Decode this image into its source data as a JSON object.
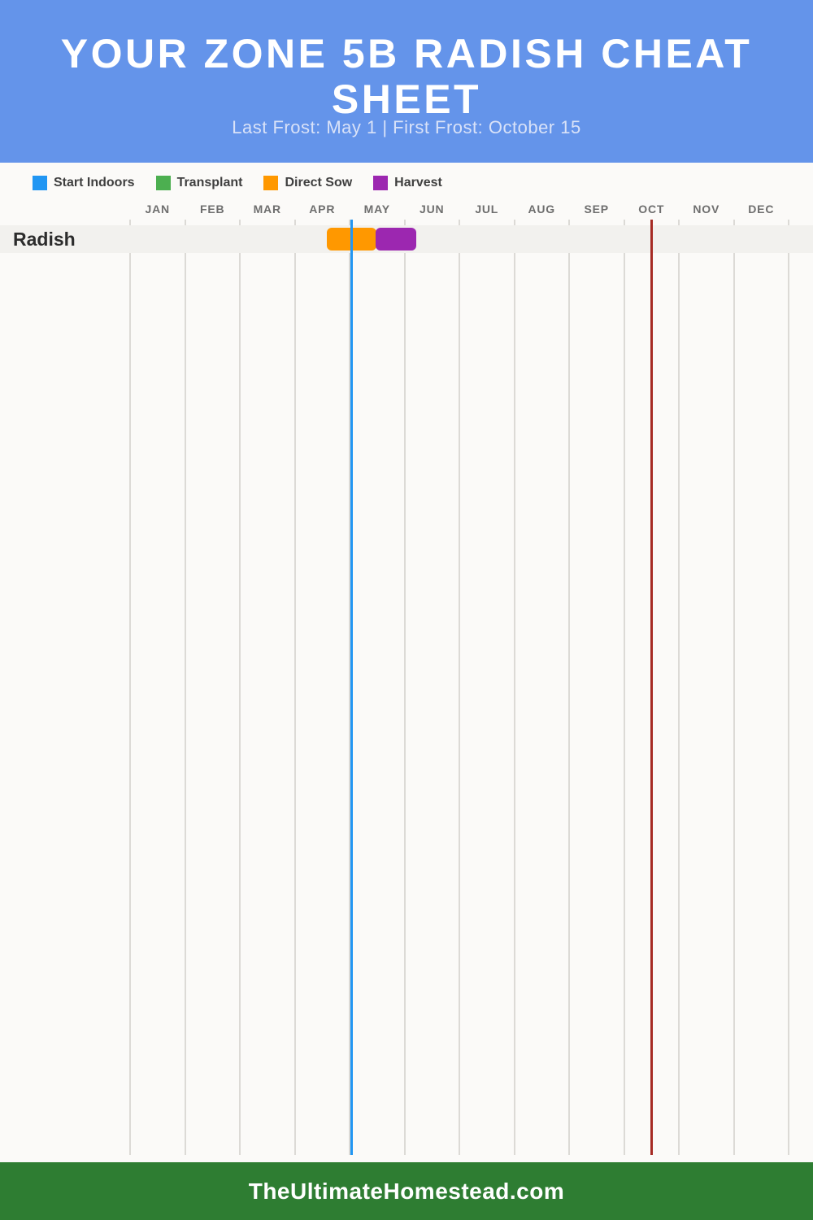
{
  "header": {
    "title_line1": "YOUR ZONE 5B RADISH CHEAT",
    "title_line2": "SHEET",
    "subtitle": "Last Frost: May 1 | First Frost: October 15",
    "bg_color": "#6494ea",
    "subtitle_color": "#d9e2f8"
  },
  "legend": {
    "items": [
      {
        "label": "Start Indoors",
        "color": "#2196f3"
      },
      {
        "label": "Transplant",
        "color": "#4caf50"
      },
      {
        "label": "Direct Sow",
        "color": "#ff9800"
      },
      {
        "label": "Harvest",
        "color": "#9c27b0"
      }
    ]
  },
  "chart_data": {
    "type": "gantt-timeline",
    "title": "Zone 5B radish planting calendar",
    "months": [
      "JAN",
      "FEB",
      "MAR",
      "APR",
      "MAY",
      "JUN",
      "JUL",
      "AUG",
      "SEP",
      "OCT",
      "NOV",
      "DEC"
    ],
    "grid": true,
    "xlim_months": [
      0,
      12
    ],
    "rows": [
      {
        "label": "Radish",
        "bars": [
          {
            "name": "Direct Sow",
            "color": "#ff9800",
            "start_date": "Apr 17",
            "end_date": "May 15",
            "start_month_frac": 3.585,
            "end_month_frac": 4.49
          },
          {
            "name": "Harvest",
            "color": "#9c27b0",
            "start_date": "May 15",
            "end_date": "Jun 6",
            "start_month_frac": 4.475,
            "end_month_frac": 5.21
          }
        ]
      }
    ],
    "markers": [
      {
        "name": "Last Frost",
        "date": "May 1",
        "color": "#2196f3",
        "month_frac": 4.04
      },
      {
        "name": "First Frost",
        "date": "October 15",
        "color": "#a62b24",
        "month_frac": 9.51
      }
    ]
  },
  "footer": {
    "text": "TheUltimateHomestead.com",
    "bg_color": "#2e7d32"
  }
}
